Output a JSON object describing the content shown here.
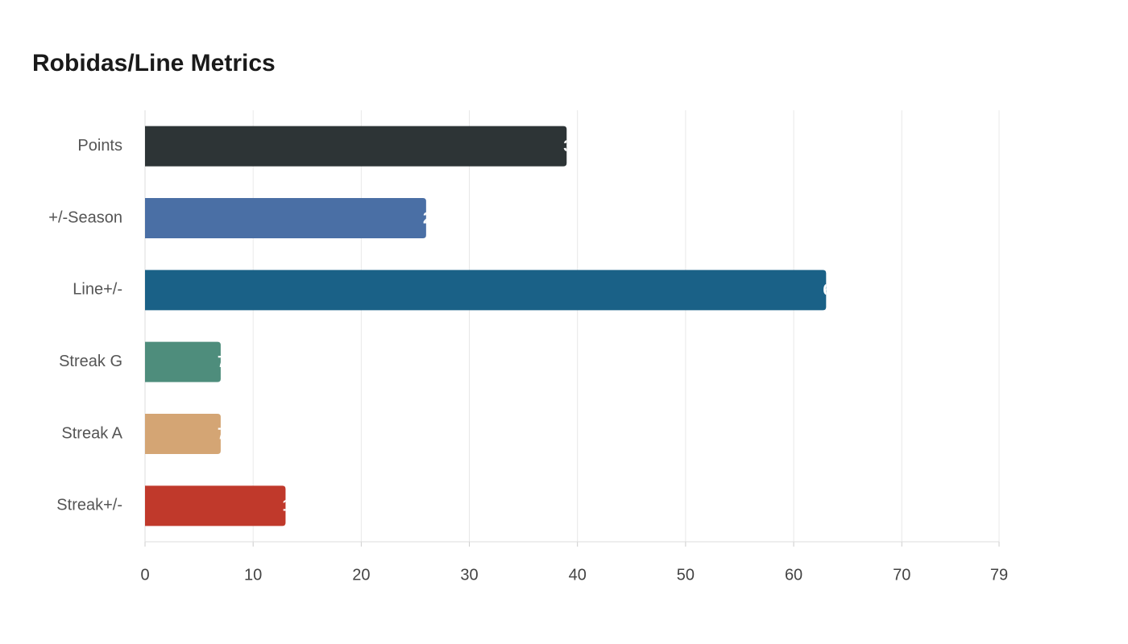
{
  "chart_data": {
    "type": "bar",
    "orientation": "horizontal",
    "title": "Robidas/Line Metrics",
    "categories": [
      "Points",
      "+/-Season",
      "Line+/-",
      "Streak G",
      "Streak A",
      "Streak+/-"
    ],
    "values": [
      39,
      26,
      63,
      7,
      7,
      13
    ],
    "colors": [
      "#2d3436",
      "#4a6fa5",
      "#1a6187",
      "#4e8d7c",
      "#d4a574",
      "#c0392b"
    ],
    "xlim": [
      0,
      79
    ],
    "xticks": [
      0,
      10,
      20,
      30,
      40,
      50,
      60,
      70,
      79
    ],
    "grid": true
  }
}
